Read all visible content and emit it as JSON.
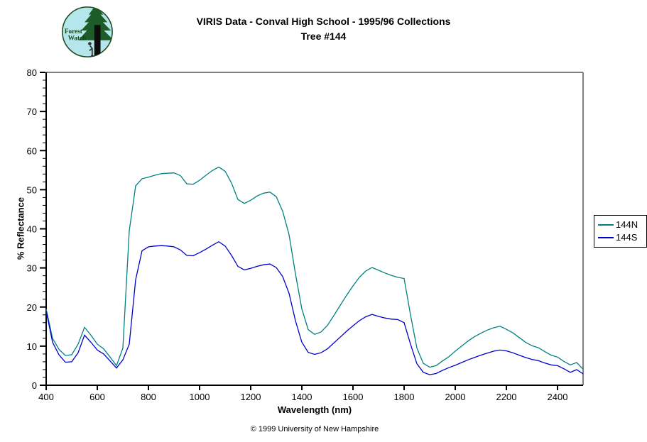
{
  "title": {
    "line1": "VIRIS Data - Conval High School - 1995/96 Collections",
    "line2": "Tree #144"
  },
  "logo": {
    "line1": "Forest",
    "line2": "Watch",
    "circle_fill": "#b5e6ec",
    "foliage_color": "#1d5c28",
    "trunk_color": "#0d0d0d"
  },
  "footer": {
    "copyright": "© 1999 University of New Hampshire"
  },
  "chart_data": {
    "type": "line",
    "title": "VIRIS Data - Conval High School - 1995/96 Collections — Tree #144",
    "xlabel": "Wavelength (nm)",
    "ylabel": "% Reflectance",
    "xlim": [
      400,
      2500
    ],
    "ylim": [
      0,
      80
    ],
    "x_major_ticks": [
      400,
      600,
      800,
      1000,
      1200,
      1400,
      1600,
      1800,
      2000,
      2200,
      2400
    ],
    "y_major_tick_step": 10,
    "y_minor_step": 2,
    "grid": "off",
    "legend_position": "right-outside",
    "x_unit": "nm",
    "x_start": 400,
    "x_step": 25,
    "series": [
      {
        "name": "144N",
        "color": "#008080",
        "values": [
          19.5,
          12.0,
          9.2,
          7.6,
          7.8,
          10.5,
          14.8,
          12.8,
          10.5,
          9.3,
          7.2,
          5.0,
          9.5,
          39.5,
          51.0,
          52.8,
          53.2,
          53.7,
          54.1,
          54.2,
          54.3,
          53.6,
          51.5,
          51.4,
          52.4,
          53.7,
          54.9,
          55.8,
          54.7,
          51.7,
          47.5,
          46.5,
          47.3,
          48.4,
          49.1,
          49.4,
          48.2,
          44.5,
          38.5,
          28.5,
          19.5,
          14.2,
          13.0,
          13.6,
          15.3,
          17.8,
          20.4,
          23.0,
          25.4,
          27.6,
          29.2,
          30.1,
          29.4,
          28.7,
          28.1,
          27.6,
          27.3,
          18.0,
          9.5,
          5.6,
          4.6,
          5.0,
          6.2,
          7.3,
          8.7,
          10.0,
          11.3,
          12.4,
          13.3,
          14.1,
          14.7,
          15.1,
          14.3,
          13.4,
          12.2,
          11.0,
          10.1,
          9.6,
          8.6,
          7.7,
          7.2,
          6.1,
          5.2,
          5.8,
          4.1
        ]
      },
      {
        "name": "144S",
        "color": "#0000cc",
        "values": [
          19.0,
          11.0,
          7.8,
          5.9,
          6.0,
          8.3,
          12.8,
          11.0,
          9.0,
          8.0,
          6.2,
          4.4,
          6.5,
          10.5,
          27.0,
          34.4,
          35.4,
          35.6,
          35.7,
          35.6,
          35.4,
          34.6,
          33.2,
          33.1,
          33.9,
          34.8,
          35.8,
          36.7,
          35.6,
          33.2,
          30.4,
          29.5,
          29.9,
          30.4,
          30.8,
          31.0,
          30.1,
          27.8,
          23.5,
          16.5,
          11.0,
          8.4,
          7.9,
          8.3,
          9.3,
          10.8,
          12.3,
          13.8,
          15.2,
          16.5,
          17.5,
          18.1,
          17.6,
          17.2,
          16.9,
          16.8,
          16.0,
          10.5,
          5.5,
          3.3,
          2.7,
          3.0,
          3.8,
          4.5,
          5.1,
          5.8,
          6.5,
          7.1,
          7.7,
          8.2,
          8.7,
          9.0,
          8.8,
          8.3,
          7.7,
          7.1,
          6.6,
          6.3,
          5.7,
          5.2,
          5.0,
          4.2,
          3.3,
          4.0,
          2.9
        ]
      }
    ]
  }
}
